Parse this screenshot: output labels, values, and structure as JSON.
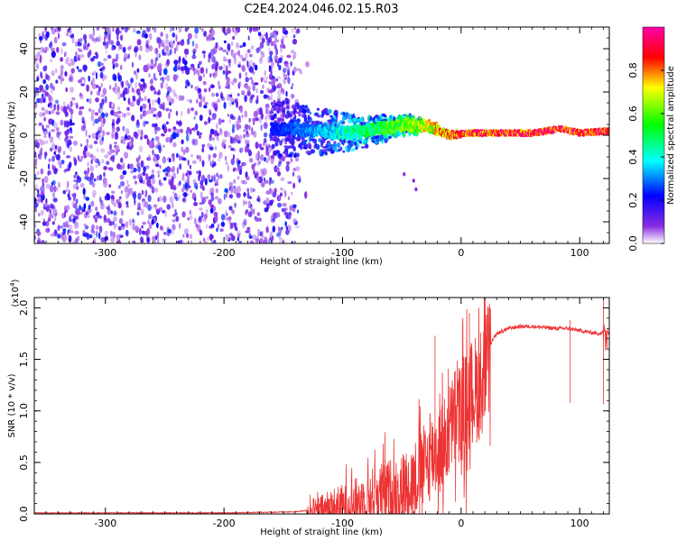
{
  "chart_data": [
    {
      "type": "heatmap",
      "title": "C2E4.2024.046.02.15.R03",
      "xlabel": "Height of straight line (km)",
      "ylabel": "Frequency (Hz)",
      "xlim": [
        -360,
        125
      ],
      "ylim": [
        -50,
        50
      ],
      "xticks": [
        -300,
        -200,
        -100,
        0,
        100
      ],
      "yticks": [
        -40,
        -20,
        0,
        20,
        40
      ],
      "colorbar": {
        "label": "Normalized spectral amplitude",
        "range": [
          0,
          1
        ],
        "ticks": [
          0.0,
          0.2,
          0.4,
          0.6,
          0.8
        ],
        "colormap": [
          "#ffffff",
          "#8a2be2",
          "#0000ff",
          "#00ffff",
          "#00ff00",
          "#ffff00",
          "#ff0000",
          "#ff00ff"
        ]
      },
      "features": {
        "noise_region_x": [
          -360,
          -140
        ],
        "signal_track": [
          {
            "x": -155,
            "f": 3,
            "amp": 0.25
          },
          {
            "x": -120,
            "f": 2,
            "amp": 0.35
          },
          {
            "x": -95,
            "f": 1,
            "amp": 0.45
          },
          {
            "x": -70,
            "f": 3,
            "amp": 0.55
          },
          {
            "x": -45,
            "f": 5,
            "amp": 0.65
          },
          {
            "x": -25,
            "f": 4,
            "amp": 0.75
          },
          {
            "x": -10,
            "f": 0,
            "amp": 0.85
          },
          {
            "x": 0,
            "f": 1,
            "amp": 0.9
          },
          {
            "x": 60,
            "f": 1,
            "amp": 0.95
          },
          {
            "x": 85,
            "f": 3,
            "amp": 0.95
          },
          {
            "x": 100,
            "f": 1,
            "amp": 0.95
          },
          {
            "x": 125,
            "f": 2,
            "amp": 0.95
          }
        ]
      }
    },
    {
      "type": "line",
      "title": "",
      "xlabel": "Height of straight line (km)",
      "ylabel": "SNR (10 * v/v)",
      "scale_label": "(x10",
      "scale_exponent": "4",
      "scale_suffix": ")",
      "xlim": [
        -360,
        125
      ],
      "ylim": [
        0,
        2.1
      ],
      "xticks": [
        -300,
        -200,
        -100,
        0,
        100
      ],
      "yticks": [
        0.0,
        0.5,
        1.0,
        1.5,
        2.0
      ],
      "series": [
        {
          "name": "SNR",
          "color": "#ee3333",
          "x": [
            -360,
            -300,
            -200,
            -140,
            -120,
            -110,
            -100,
            -90,
            -80,
            -70,
            -60,
            -50,
            -40,
            -35,
            -30,
            -25,
            -20,
            -15,
            -10,
            -5,
            0,
            5,
            10,
            15,
            20,
            25,
            30,
            40,
            50,
            60,
            70,
            80,
            90,
            100,
            110,
            118,
            122,
            125
          ],
          "y": [
            0.01,
            0.01,
            0.01,
            0.02,
            0.05,
            0.1,
            0.12,
            0.15,
            0.2,
            0.25,
            0.28,
            0.32,
            0.4,
            0.5,
            0.55,
            0.65,
            0.7,
            0.75,
            0.9,
            1.05,
            1.1,
            1.2,
            1.3,
            1.35,
            1.5,
            1.65,
            1.75,
            1.8,
            1.82,
            1.82,
            1.81,
            1.8,
            1.8,
            1.78,
            1.76,
            1.75,
            1.8,
            1.75
          ]
        }
      ]
    }
  ]
}
